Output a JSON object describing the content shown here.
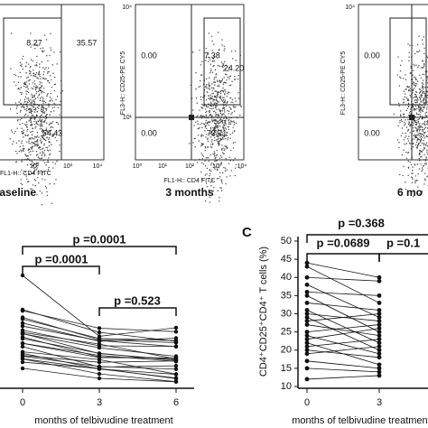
{
  "flow_panels": [
    {
      "quadrant_values": [
        "8.27",
        "35.57",
        "54.43"
      ],
      "x_axis_label": "FL1-H:: CD4 FITC",
      "x_ticks": [
        "10²",
        "10³",
        "10⁴"
      ],
      "caption": "baseline"
    },
    {
      "y_axis_label": "FL3-H:: CD25-PE CY5",
      "quadrant_values": [
        "0.00",
        "7.38",
        "24.20",
        "0.00",
        "73.71"
      ],
      "x_axis_label": "FL1-H:: CD4 FITC",
      "x_ticks": [
        "10⁰",
        "10¹",
        "10²",
        "10³",
        "10⁴"
      ],
      "y_ticks": [
        "10⁴",
        "10¹"
      ],
      "caption": "3 months"
    },
    {
      "y_axis_label": "FL3-H:: CD25-PE CY5",
      "quadrant_values": [
        "0.00",
        "0.00"
      ],
      "y_ticks": [
        "10⁴"
      ],
      "caption": "6 mo"
    }
  ],
  "panel_b": {
    "p_values": [
      "p =0.0001",
      "p =0.0001",
      "p =0.523"
    ],
    "x_ticks": [
      "0",
      "3",
      "6"
    ],
    "x_axis_label": "months of telbivudine treatment"
  },
  "chart_data": {
    "type": "line",
    "panel_letter": "C",
    "y_axis_label": "CD4⁺CD25⁺CD4⁺ T cells (%)",
    "x_axis_label": "months of telbivudine treatment",
    "p_values": [
      "p =0.368",
      "p =0.0689",
      "p =0.1"
    ],
    "x": [
      0,
      3
    ],
    "xticks": [
      0,
      3
    ],
    "ylim": [
      10,
      50
    ],
    "yticks": [
      10,
      15,
      20,
      25,
      30,
      35,
      40,
      45,
      50
    ],
    "series": [
      {
        "color": "#111",
        "values": [
          44,
          40
        ]
      },
      {
        "color": "#111",
        "values": [
          43,
          33
        ]
      },
      {
        "color": "#111",
        "values": [
          40,
          39
        ]
      },
      {
        "color": "#111",
        "values": [
          38,
          29
        ]
      },
      {
        "color": "#111",
        "values": [
          36,
          35
        ]
      },
      {
        "color": "#111",
        "values": [
          35,
          25
        ]
      },
      {
        "color": "#111",
        "values": [
          33,
          31
        ]
      },
      {
        "color": "#111",
        "values": [
          31,
          22
        ]
      },
      {
        "color": "#111",
        "values": [
          30,
          28
        ]
      },
      {
        "color": "#111",
        "values": [
          29,
          20
        ]
      },
      {
        "color": "#111",
        "values": [
          28,
          30
        ]
      },
      {
        "color": "#111",
        "values": [
          27,
          24
        ]
      },
      {
        "color": "#111",
        "values": [
          25,
          27
        ]
      },
      {
        "color": "#111",
        "values": [
          24,
          19
        ]
      },
      {
        "color": "#111",
        "values": [
          23,
          26
        ]
      },
      {
        "color": "#111",
        "values": [
          22,
          16
        ]
      },
      {
        "color": "#111",
        "values": [
          21,
          23
        ]
      },
      {
        "color": "#111",
        "values": [
          20,
          18
        ]
      },
      {
        "color": "#111",
        "values": [
          19,
          21
        ]
      },
      {
        "color": "#111",
        "values": [
          17,
          15
        ]
      },
      {
        "color": "#111",
        "values": [
          15,
          14
        ]
      },
      {
        "color": "#111",
        "values": [
          12,
          13
        ]
      }
    ]
  }
}
